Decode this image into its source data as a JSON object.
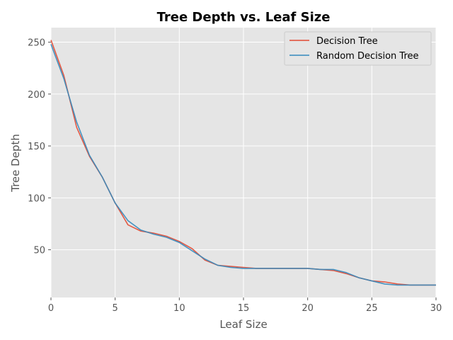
{
  "chart_data": {
    "type": "line",
    "title": "Tree Depth vs. Leaf Size",
    "xlabel": "Leaf Size",
    "ylabel": "Tree Depth",
    "xlim": [
      0,
      30
    ],
    "ylim": [
      4,
      264
    ],
    "xticks": [
      0,
      5,
      10,
      15,
      20,
      25,
      30
    ],
    "yticks": [
      50,
      100,
      150,
      200,
      250
    ],
    "grid": true,
    "legend_position": "top-right",
    "x": [
      0,
      1,
      2,
      3,
      4,
      5,
      6,
      7,
      8,
      9,
      10,
      11,
      12,
      13,
      14,
      15,
      16,
      17,
      18,
      19,
      20,
      21,
      22,
      23,
      24,
      25,
      26,
      27,
      28,
      29,
      30
    ],
    "series": [
      {
        "name": "Decision Tree",
        "color": "#E24A33",
        "values": [
          252,
          218,
          168,
          140,
          120,
          95,
          74,
          68,
          66,
          63,
          58,
          51,
          40,
          35,
          34,
          33,
          32,
          32,
          32,
          32,
          32,
          31,
          30,
          27,
          23,
          20,
          19,
          17,
          16,
          16,
          16
        ]
      },
      {
        "name": "Random Decision Tree",
        "color": "#348ABD",
        "values": [
          248,
          215,
          173,
          141,
          120,
          95,
          78,
          69,
          65,
          62,
          57,
          49,
          41,
          35,
          33,
          32,
          32,
          32,
          32,
          32,
          32,
          31,
          31,
          28,
          23,
          20,
          17,
          16,
          16,
          16,
          16
        ]
      }
    ]
  }
}
